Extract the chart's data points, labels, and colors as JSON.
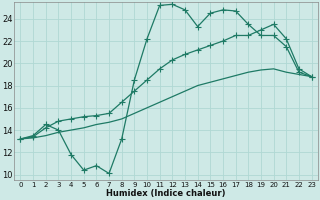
{
  "xlabel": "Humidex (Indice chaleur)",
  "bg_color": "#cee9e6",
  "grid_color": "#b0d8d4",
  "line_color": "#1e7a65",
  "xlim": [
    -0.5,
    23.5
  ],
  "ylim": [
    9.5,
    25.5
  ],
  "xticks": [
    0,
    1,
    2,
    3,
    4,
    5,
    6,
    7,
    8,
    9,
    10,
    11,
    12,
    13,
    14,
    15,
    16,
    17,
    18,
    19,
    20,
    21,
    22,
    23
  ],
  "yticks": [
    10,
    12,
    14,
    16,
    18,
    20,
    22,
    24
  ],
  "line1_x": [
    0,
    1,
    2,
    3,
    4,
    5,
    6,
    7,
    8,
    9,
    10,
    11,
    12,
    13,
    14,
    15,
    16,
    17,
    18,
    19,
    20,
    21,
    22,
    23
  ],
  "line1_y": [
    13.2,
    13.5,
    14.5,
    14.0,
    11.8,
    10.4,
    10.8,
    10.1,
    13.2,
    18.5,
    22.2,
    25.2,
    25.3,
    24.8,
    23.3,
    24.5,
    24.8,
    24.7,
    23.5,
    22.5,
    22.5,
    21.5,
    19.2,
    18.8
  ],
  "line2_x": [
    0,
    1,
    2,
    3,
    4,
    5,
    6,
    7,
    8,
    9,
    10,
    11,
    12,
    13,
    14,
    15,
    16,
    17,
    18,
    19,
    20,
    21,
    22,
    23
  ],
  "line2_y": [
    13.2,
    13.4,
    14.2,
    14.8,
    15.0,
    15.2,
    15.3,
    15.5,
    16.5,
    17.5,
    18.5,
    19.5,
    20.3,
    20.8,
    21.2,
    21.6,
    22.0,
    22.5,
    22.5,
    23.0,
    23.5,
    22.2,
    19.5,
    18.8
  ],
  "line3_x": [
    0,
    1,
    2,
    3,
    4,
    5,
    6,
    7,
    8,
    9,
    10,
    11,
    12,
    13,
    14,
    15,
    16,
    17,
    18,
    19,
    20,
    21,
    22,
    23
  ],
  "line3_y": [
    13.2,
    13.3,
    13.5,
    13.8,
    14.0,
    14.2,
    14.5,
    14.7,
    15.0,
    15.5,
    16.0,
    16.5,
    17.0,
    17.5,
    18.0,
    18.3,
    18.6,
    18.9,
    19.2,
    19.4,
    19.5,
    19.2,
    19.0,
    18.8
  ]
}
